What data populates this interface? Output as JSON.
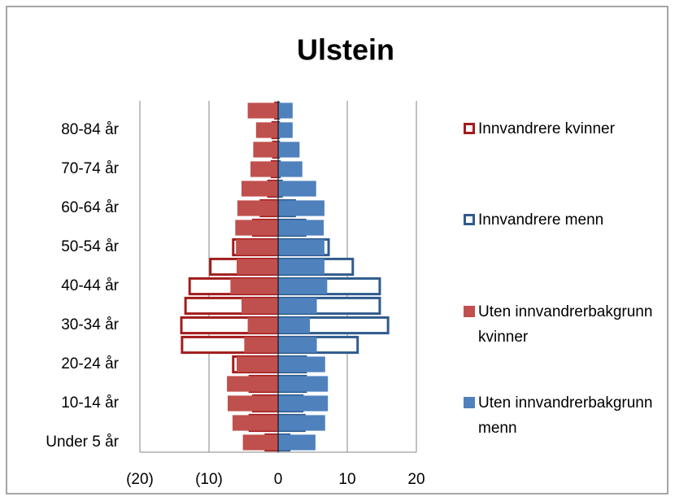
{
  "chart_data": {
    "type": "pyramid",
    "title": "Ulstein",
    "categories": [
      "Under 5 år",
      null,
      "10-14 år",
      null,
      "20-24 år",
      null,
      "30-34 år",
      null,
      "40-44 år",
      null,
      "50-54 år",
      null,
      "60-64 år",
      null,
      "70-74 år",
      null,
      "80-84 år",
      null
    ],
    "series": [
      {
        "name": "Innvandrere kvinner",
        "color": "#a31c1c",
        "style": "outline",
        "values": [
          -1.8,
          -4.1,
          -3.6,
          -4.1,
          -6.5,
          -13.9,
          -14,
          -13.4,
          -12.8,
          -9.8,
          -6.5,
          -3.6,
          -2.5,
          -1.4,
          -0.9,
          -0.7,
          -0.8,
          -0.4
        ]
      },
      {
        "name": "Innvandrere menn",
        "color": "#2f5b8d",
        "style": "outline",
        "values": [
          1.6,
          3.8,
          3.5,
          4,
          4,
          11.5,
          15.9,
          14.7,
          14.7,
          10.8,
          7.3,
          3.9,
          2.4,
          0.5,
          0.2,
          0.1,
          0.1,
          0.1
        ]
      },
      {
        "name": "Uten innvandrerbakgrunn kvinner",
        "color": "#c0504d",
        "style": "fill",
        "values": [
          -5.1,
          -6.6,
          -7.3,
          -7.4,
          -6,
          -4.9,
          -4.4,
          -5.3,
          -6.9,
          -6,
          -6.1,
          -6.2,
          -5.9,
          -5.3,
          -4,
          -3.6,
          -3.2,
          -4.4
        ]
      },
      {
        "name": "Uten innvandrerbakgrunn menn",
        "color": "#4f81bd",
        "style": "fill",
        "values": [
          5.4,
          6.8,
          7.2,
          7.2,
          6.8,
          5.6,
          4.6,
          5.6,
          7.1,
          6.7,
          6.7,
          6.6,
          6.7,
          5.5,
          3.5,
          3.1,
          2.1,
          2.1
        ]
      }
    ],
    "xlim": [
      -20,
      20
    ],
    "xticks": [
      {
        "value": -20,
        "label": "(20)"
      },
      {
        "value": -10,
        "label": "(10)"
      },
      0,
      10,
      20
    ],
    "grid": true,
    "legend": "right"
  }
}
